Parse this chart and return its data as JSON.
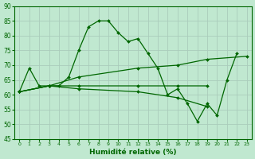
{
  "bg_color": "#c0e8d0",
  "grid_color": "#b0d8c0",
  "line_color": "#006600",
  "xlabel": "Humidité relative (%)",
  "ylim": [
    45,
    90
  ],
  "xlim": [
    -0.5,
    23.5
  ],
  "yticks": [
    45,
    50,
    55,
    60,
    65,
    70,
    75,
    80,
    85,
    90
  ],
  "xticks": [
    0,
    1,
    2,
    3,
    4,
    5,
    6,
    7,
    8,
    9,
    10,
    11,
    12,
    13,
    14,
    15,
    16,
    17,
    18,
    19,
    20,
    21,
    22,
    23
  ],
  "series": [
    {
      "x": [
        0,
        1,
        2,
        3,
        4,
        5,
        6,
        7,
        8,
        9,
        10,
        11,
        12,
        13,
        14,
        15,
        16,
        17,
        18,
        19,
        20,
        21,
        22
      ],
      "y": [
        61,
        69,
        63,
        63,
        63,
        66,
        75,
        83,
        85,
        85,
        81,
        78,
        79,
        74,
        69,
        60,
        62,
        57,
        51,
        57,
        53,
        65,
        74
      ]
    },
    {
      "x": [
        0,
        3,
        6,
        12,
        16,
        19,
        23
      ],
      "y": [
        61,
        63,
        66,
        69,
        70,
        72,
        73
      ]
    },
    {
      "x": [
        0,
        3,
        6,
        12,
        16,
        19
      ],
      "y": [
        61,
        63,
        63,
        63,
        63,
        63
      ]
    },
    {
      "x": [
        0,
        3,
        6,
        12,
        16,
        19
      ],
      "y": [
        61,
        63,
        62,
        61,
        59,
        56
      ]
    }
  ]
}
